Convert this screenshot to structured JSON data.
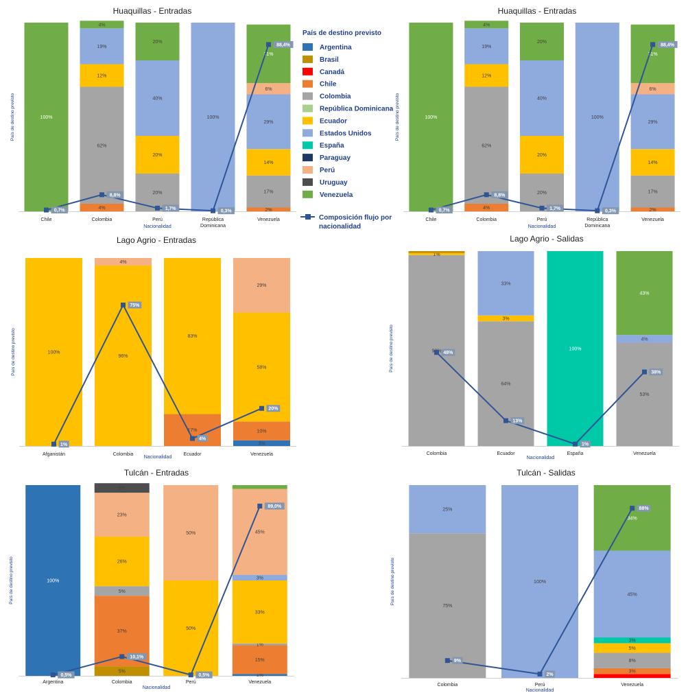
{
  "legend": {
    "title": "País de destino previsto",
    "items": [
      {
        "name": "Argentina",
        "color": "#2e74b5"
      },
      {
        "name": "Brasil",
        "color": "#bf8f00"
      },
      {
        "name": "Canadá",
        "color": "#ff0000"
      },
      {
        "name": "Chile",
        "color": "#ed7d31"
      },
      {
        "name": "Colombia",
        "color": "#a5a5a5"
      },
      {
        "name": "República Dominicana",
        "color": "#a9d18e"
      },
      {
        "name": "Ecuador",
        "color": "#ffc000"
      },
      {
        "name": "Estados Unidos",
        "color": "#8faadc"
      },
      {
        "name": "España",
        "color": "#00c9a7"
      },
      {
        "name": "Paraguay",
        "color": "#203864"
      },
      {
        "name": "Perú",
        "color": "#f4b183"
      },
      {
        "name": "Uruguay",
        "color": "#4d4d4d"
      },
      {
        "name": "Venezuela",
        "color": "#70ad47"
      }
    ],
    "line_label": "Composición flujo por nacionalidad",
    "line_color": "#2f5597"
  },
  "chart_data": [
    {
      "type": "bar",
      "stacked": true,
      "title": "Huaquillas - Entradas",
      "xlabel": "Nacionalidad",
      "ylabel": "País de destino previsto",
      "ylim": [
        0,
        100
      ],
      "categories": [
        "Chile",
        "Colombia",
        "Perú",
        "República Dominicana",
        "Venezuela"
      ],
      "stacks": [
        [
          {
            "country": "Venezuela",
            "value": 100,
            "label": "100%"
          }
        ],
        [
          {
            "country": "Chile",
            "value": 4,
            "label": "4%"
          },
          {
            "country": "Colombia",
            "value": 62,
            "label": "62%"
          },
          {
            "country": "Ecuador",
            "value": 12,
            "label": "12%"
          },
          {
            "country": "Estados Unidos",
            "value": 19,
            "label": "19%"
          },
          {
            "country": "Venezuela",
            "value": 4,
            "label": "4%"
          }
        ],
        [
          {
            "country": "Colombia",
            "value": 20,
            "label": "20%"
          },
          {
            "country": "Ecuador",
            "value": 20,
            "label": "20%"
          },
          {
            "country": "Estados Unidos",
            "value": 40,
            "label": "40%"
          },
          {
            "country": "Venezuela",
            "value": 20,
            "label": "20%"
          }
        ],
        [
          {
            "country": "Estados Unidos",
            "value": 100,
            "label": "100%"
          }
        ],
        [
          {
            "country": "Chile",
            "value": 2,
            "label": "2%"
          },
          {
            "country": "Colombia",
            "value": 17,
            "label": "17%"
          },
          {
            "country": "Ecuador",
            "value": 14,
            "label": "14%"
          },
          {
            "country": "Estados Unidos",
            "value": 29,
            "label": "29%"
          },
          {
            "country": "Perú",
            "value": 6,
            "label": "6%"
          },
          {
            "country": "Venezuela",
            "value": 31,
            "label": "31%"
          }
        ]
      ],
      "line": {
        "values": [
          0.7,
          8.8,
          1.7,
          0.3,
          88.4
        ],
        "labels": [
          "0,7%",
          "8,8%",
          "1,7%",
          "0,3%",
          "88,4%"
        ]
      }
    },
    {
      "type": "bar",
      "stacked": true,
      "title": "Huaquillas - Entradas",
      "xlabel": "Nacionalidad",
      "ylabel": "País de destino previsto",
      "ylim": [
        0,
        100
      ],
      "categories": [
        "Chile",
        "Colombia",
        "Perú",
        "República Dominicana",
        "Venezuela"
      ],
      "stacks": [
        [
          {
            "country": "Venezuela",
            "value": 100,
            "label": "100%"
          }
        ],
        [
          {
            "country": "Chile",
            "value": 4,
            "label": "4%"
          },
          {
            "country": "Colombia",
            "value": 62,
            "label": "62%"
          },
          {
            "country": "Ecuador",
            "value": 12,
            "label": "12%"
          },
          {
            "country": "Estados Unidos",
            "value": 19,
            "label": "19%"
          },
          {
            "country": "Venezuela",
            "value": 4,
            "label": "4%"
          }
        ],
        [
          {
            "country": "Colombia",
            "value": 20,
            "label": "20%"
          },
          {
            "country": "Ecuador",
            "value": 20,
            "label": "20%"
          },
          {
            "country": "Estados Unidos",
            "value": 40,
            "label": "40%"
          },
          {
            "country": "Venezuela",
            "value": 20,
            "label": "20%"
          }
        ],
        [
          {
            "country": "Estados Unidos",
            "value": 100,
            "label": "100%"
          }
        ],
        [
          {
            "country": "Chile",
            "value": 2,
            "label": "2%"
          },
          {
            "country": "Colombia",
            "value": 17,
            "label": "17%"
          },
          {
            "country": "Ecuador",
            "value": 14,
            "label": "14%"
          },
          {
            "country": "Estados Unidos",
            "value": 29,
            "label": "29%"
          },
          {
            "country": "Perú",
            "value": 6,
            "label": "6%"
          },
          {
            "country": "Venezuela",
            "value": 31,
            "label": "31%"
          }
        ]
      ],
      "line": {
        "values": [
          0.7,
          8.8,
          1.7,
          0.3,
          88.4
        ],
        "labels": [
          "0,7%",
          "8,8%",
          "1,7%",
          "0,3%",
          "88,4%"
        ]
      }
    },
    {
      "type": "bar",
      "stacked": true,
      "title": "Lago Agrio - Entradas",
      "xlabel": "Nacionalidad",
      "ylabel": "País de destino previsto",
      "ylim": [
        0,
        100
      ],
      "categories": [
        "Afganistán",
        "Colombia",
        "Ecuador",
        "Venezuela"
      ],
      "stacks": [
        [
          {
            "country": "Ecuador",
            "value": 100,
            "label": "100%"
          }
        ],
        [
          {
            "country": "Ecuador",
            "value": 96,
            "label": "96%"
          },
          {
            "country": "Perú",
            "value": 4,
            "label": "4%"
          }
        ],
        [
          {
            "country": "Chile",
            "value": 17,
            "label": "17%"
          },
          {
            "country": "Ecuador",
            "value": 83,
            "label": "83%"
          }
        ],
        [
          {
            "country": "Argentina",
            "value": 3,
            "label": "3%"
          },
          {
            "country": "Chile",
            "value": 10,
            "label": "10%"
          },
          {
            "country": "Ecuador",
            "value": 58,
            "label": "58%"
          },
          {
            "country": "Perú",
            "value": 29,
            "label": "29%"
          }
        ]
      ],
      "line": {
        "values": [
          1,
          75,
          4,
          20
        ],
        "labels": [
          "1%",
          "75%",
          "4%",
          "20%"
        ]
      }
    },
    {
      "type": "bar",
      "stacked": true,
      "title": "Lago Agrio - Salidas",
      "xlabel": "Nacionalidad",
      "ylabel": "País de destino previsto",
      "ylim": [
        0,
        100
      ],
      "categories": [
        "Colombia",
        "Ecuador",
        "España",
        "Venezuela"
      ],
      "stacks": [
        [
          {
            "country": "Colombia",
            "value": 98,
            "label": "98%"
          },
          {
            "country": "Ecuador",
            "value": 1,
            "label": "1%"
          },
          {
            "country": "Brasil",
            "value": 1,
            "label": ""
          }
        ],
        [
          {
            "country": "Colombia",
            "value": 64,
            "label": "64%"
          },
          {
            "country": "Ecuador",
            "value": 3,
            "label": "3%"
          },
          {
            "country": "Estados Unidos",
            "value": 33,
            "label": "33%"
          }
        ],
        [
          {
            "country": "España",
            "value": 100,
            "label": "100%"
          }
        ],
        [
          {
            "country": "Colombia",
            "value": 53,
            "label": "53%"
          },
          {
            "country": "Estados Unidos",
            "value": 4,
            "label": "4%"
          },
          {
            "country": "Venezuela",
            "value": 43,
            "label": "43%"
          }
        ]
      ],
      "line": {
        "values": [
          48,
          13,
          1,
          38
        ],
        "labels": [
          "48%",
          "13%",
          "1%",
          "38%"
        ]
      }
    },
    {
      "type": "bar",
      "stacked": true,
      "title": "Tulcán - Entradas",
      "xlabel": "Nacionalidad",
      "ylabel": "País de destino previsto",
      "ylim": [
        0,
        100
      ],
      "categories": [
        "Argentina",
        "Colombia",
        "Perú",
        "Venezuela"
      ],
      "stacks": [
        [
          {
            "country": "Argentina",
            "value": 100,
            "label": "100%"
          }
        ],
        [
          {
            "country": "Brasil",
            "value": 5,
            "label": "5%"
          },
          {
            "country": "Chile",
            "value": 37,
            "label": "37%"
          },
          {
            "country": "Colombia",
            "value": 5,
            "label": "5%"
          },
          {
            "country": "Ecuador",
            "value": 26,
            "label": "26%"
          },
          {
            "country": "Perú",
            "value": 23,
            "label": "23%"
          },
          {
            "country": "Uruguay",
            "value": 5,
            "label": "5%"
          }
        ],
        [
          {
            "country": "Ecuador",
            "value": 50,
            "label": "50%"
          },
          {
            "country": "Perú",
            "value": 50,
            "label": "50%"
          }
        ],
        [
          {
            "country": "Argentina",
            "value": 1,
            "label": "1%"
          },
          {
            "country": "Chile",
            "value": 15,
            "label": "15%"
          },
          {
            "country": "Colombia",
            "value": 1,
            "label": "1%"
          },
          {
            "country": "Ecuador",
            "value": 33,
            "label": "33%"
          },
          {
            "country": "Estados Unidos",
            "value": 3,
            "label": "3%"
          },
          {
            "country": "Perú",
            "value": 45,
            "label": "45%"
          },
          {
            "country": "Venezuela",
            "value": 2,
            "label": ""
          }
        ]
      ],
      "line": {
        "values": [
          0.5,
          10.1,
          0.5,
          89.0
        ],
        "labels": [
          "0,5%",
          "10,1%",
          "0,5%",
          "89,0%"
        ]
      }
    },
    {
      "type": "bar",
      "stacked": true,
      "title": "Tulcán - Salidas",
      "xlabel": "Nacionalidad",
      "ylabel": "País de destino previsto",
      "ylim": [
        0,
        100
      ],
      "categories": [
        "Colombia",
        "Perú",
        "Venezuela"
      ],
      "stacks": [
        [
          {
            "country": "Colombia",
            "value": 75,
            "label": "75%"
          },
          {
            "country": "Estados Unidos",
            "value": 25,
            "label": "25%"
          }
        ],
        [
          {
            "country": "Estados Unidos",
            "value": 100,
            "label": "100%"
          }
        ],
        [
          {
            "country": "Canadá",
            "value": 2,
            "label": ""
          },
          {
            "country": "Chile",
            "value": 3,
            "label": "3%"
          },
          {
            "country": "Colombia",
            "value": 8,
            "label": "8%"
          },
          {
            "country": "Ecuador",
            "value": 5,
            "label": "5%"
          },
          {
            "country": "España",
            "value": 3,
            "label": "3%"
          },
          {
            "country": "Estados Unidos",
            "value": 45,
            "label": "45%"
          },
          {
            "country": "Venezuela",
            "value": 34,
            "label": "34%"
          }
        ]
      ],
      "line": {
        "values": [
          9,
          2,
          88
        ],
        "labels": [
          "9%",
          "2%",
          "88%"
        ]
      }
    }
  ]
}
